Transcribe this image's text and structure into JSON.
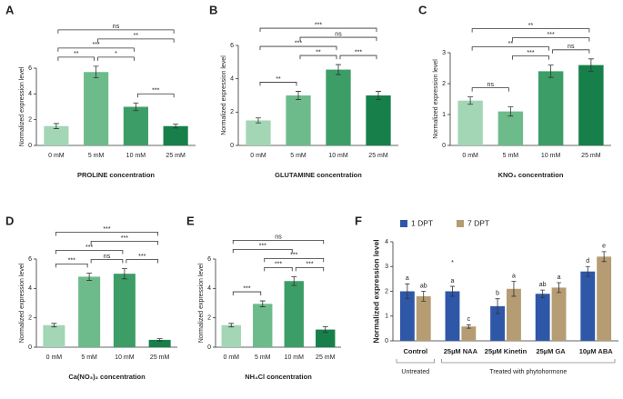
{
  "chart_data": [
    {
      "type": "bar",
      "panel": "A",
      "ylabel": "Normalized expression level",
      "xlabel": "PROLINE concentration",
      "categories": [
        "0 mM",
        "5 mM",
        "10 mM",
        "25 mM"
      ],
      "values": [
        1.5,
        5.7,
        3.0,
        1.5
      ],
      "errors": [
        0.2,
        0.45,
        0.3,
        0.15
      ],
      "colors": [
        "#a3d6b4",
        "#6dbb8b",
        "#3d9d66",
        "#17804a"
      ],
      "ylim": [
        0,
        6
      ],
      "yticks": [
        0,
        2,
        4,
        6
      ],
      "comparisons": [
        {
          "label": "**",
          "between": [
            "0 mM",
            "5 mM"
          ]
        },
        {
          "label": "*",
          "between": [
            "5 mM",
            "10 mM"
          ]
        },
        {
          "label": "***",
          "between": [
            "10 mM",
            "25 mM"
          ]
        },
        {
          "label": "***",
          "between": [
            "0 mM",
            "10 mM"
          ]
        },
        {
          "label": "**",
          "between": [
            "5 mM",
            "25 mM"
          ]
        },
        {
          "label": "ns",
          "between": [
            "0 mM",
            "25 mM"
          ]
        }
      ]
    },
    {
      "type": "bar",
      "panel": "B",
      "ylabel": "Normalized expression level",
      "xlabel": "GLUTAMINE concentration",
      "categories": [
        "0 mM",
        "5 mM",
        "10 mM",
        "25 mM"
      ],
      "values": [
        1.5,
        3.0,
        4.55,
        3.0
      ],
      "errors": [
        0.15,
        0.25,
        0.3,
        0.25
      ],
      "colors": [
        "#a3d6b4",
        "#6dbb8b",
        "#3d9d66",
        "#17804a"
      ],
      "ylim": [
        0,
        6
      ],
      "yticks": [
        0,
        2,
        4,
        6
      ],
      "comparisons": [
        {
          "label": "**",
          "between": [
            "0 mM",
            "5 mM"
          ]
        },
        {
          "label": "**",
          "between": [
            "5 mM",
            "10 mM"
          ]
        },
        {
          "label": "***",
          "between": [
            "10 mM",
            "25 mM"
          ]
        },
        {
          "label": "***",
          "between": [
            "0 mM",
            "10 mM"
          ]
        },
        {
          "label": "ns",
          "between": [
            "5 mM",
            "25 mM"
          ]
        },
        {
          "label": "***",
          "between": [
            "0 mM",
            "25 mM"
          ]
        }
      ]
    },
    {
      "type": "bar",
      "panel": "C",
      "ylabel": "Normalized expression level",
      "xlabel": "KNO₃ concentration",
      "categories": [
        "0 mM",
        "5 mM",
        "10 mM",
        "25 mM"
      ],
      "values": [
        1.45,
        1.1,
        2.4,
        2.6
      ],
      "errors": [
        0.12,
        0.15,
        0.2,
        0.2
      ],
      "colors": [
        "#a3d6b4",
        "#6dbb8b",
        "#3d9d66",
        "#17804a"
      ],
      "ylim": [
        0,
        3
      ],
      "yticks": [
        0,
        1,
        2,
        3
      ],
      "comparisons": [
        {
          "label": "ns",
          "between": [
            "0 mM",
            "5 mM"
          ]
        },
        {
          "label": "***",
          "between": [
            "5 mM",
            "10 mM"
          ]
        },
        {
          "label": "ns",
          "between": [
            "10 mM",
            "25 mM"
          ]
        },
        {
          "label": "**",
          "between": [
            "0 mM",
            "10 mM"
          ]
        },
        {
          "label": "***",
          "between": [
            "5 mM",
            "25 mM"
          ]
        },
        {
          "label": "**",
          "between": [
            "0 mM",
            "25 mM"
          ]
        }
      ]
    },
    {
      "type": "bar",
      "panel": "D",
      "ylabel": "Normalized expression level",
      "xlabel": "Ca(NO₃)₂ concentration",
      "categories": [
        "0 mM",
        "5 mM",
        "10 mM",
        "25 mM"
      ],
      "values": [
        1.5,
        4.8,
        5.0,
        0.5
      ],
      "errors": [
        0.12,
        0.25,
        0.35,
        0.08
      ],
      "colors": [
        "#a3d6b4",
        "#6dbb8b",
        "#3d9d66",
        "#17804a"
      ],
      "ylim": [
        0,
        6
      ],
      "yticks": [
        0,
        2,
        4,
        6
      ],
      "comparisons": [
        {
          "label": "***",
          "between": [
            "0 mM",
            "5 mM"
          ]
        },
        {
          "label": "ns",
          "between": [
            "5 mM",
            "10 mM"
          ]
        },
        {
          "label": "***",
          "between": [
            "10 mM",
            "25 mM"
          ]
        },
        {
          "label": "***",
          "between": [
            "0 mM",
            "10 mM"
          ]
        },
        {
          "label": "***",
          "between": [
            "5 mM",
            "25 mM"
          ]
        },
        {
          "label": "***",
          "between": [
            "0 mM",
            "25 mM"
          ]
        }
      ]
    },
    {
      "type": "bar",
      "panel": "E",
      "ylabel": "Normalized expression level",
      "xlabel": "NH₄Cl concentration",
      "categories": [
        "0 mM",
        "5 mM",
        "10 mM",
        "25 mM"
      ],
      "values": [
        1.5,
        2.95,
        4.5,
        1.2
      ],
      "errors": [
        0.12,
        0.2,
        0.3,
        0.2
      ],
      "colors": [
        "#a3d6b4",
        "#6dbb8b",
        "#3d9d66",
        "#17804a"
      ],
      "ylim": [
        0,
        6
      ],
      "yticks": [
        0,
        2,
        4,
        6
      ],
      "comparisons": [
        {
          "label": "***",
          "between": [
            "0 mM",
            "5 mM"
          ]
        },
        {
          "label": "***",
          "between": [
            "5 mM",
            "10 mM"
          ]
        },
        {
          "label": "***",
          "between": [
            "10 mM",
            "25 mM"
          ]
        },
        {
          "label": "***",
          "between": [
            "5 mM",
            "25 mM"
          ]
        },
        {
          "label": "***",
          "between": [
            "0 mM",
            "10 mM"
          ]
        },
        {
          "label": "ns",
          "between": [
            "0 mM",
            "25 mM"
          ]
        }
      ]
    },
    {
      "type": "grouped_bar",
      "panel": "F",
      "ylabel": "Normalized expression level",
      "categories": [
        "Control",
        "25µM NAA",
        "25µM Kinetin",
        "25µM GA",
        "10µM ABA"
      ],
      "series": [
        {
          "name": "1 DPT",
          "color": "#2f57a8",
          "values": [
            2.0,
            2.0,
            1.4,
            1.9,
            2.8
          ],
          "errors": [
            0.3,
            0.2,
            0.3,
            0.15,
            0.2
          ],
          "letters": [
            "a",
            "a",
            "b",
            "ab",
            "d"
          ]
        },
        {
          "name": "7 DPT",
          "color": "#b69c73",
          "values": [
            1.8,
            0.58,
            2.1,
            2.15,
            3.4
          ],
          "errors": [
            0.2,
            0.07,
            0.3,
            0.2,
            0.2
          ],
          "letters": [
            "ab",
            "c",
            "a",
            "a",
            "e"
          ]
        }
      ],
      "annotations": [
        {
          "text": "*",
          "category": "25µM NAA",
          "series": "1 DPT"
        }
      ],
      "groups": [
        {
          "label": "Untreated",
          "categories": [
            "Control"
          ]
        },
        {
          "label": "Treated with phytohormone",
          "categories": [
            "25µM NAA",
            "25µM Kinetin",
            "25µM GA",
            "10µM ABA"
          ]
        }
      ],
      "ylim": [
        0,
        4
      ],
      "yticks": [
        0,
        1,
        2,
        3,
        4
      ],
      "legend": "upper left"
    }
  ]
}
